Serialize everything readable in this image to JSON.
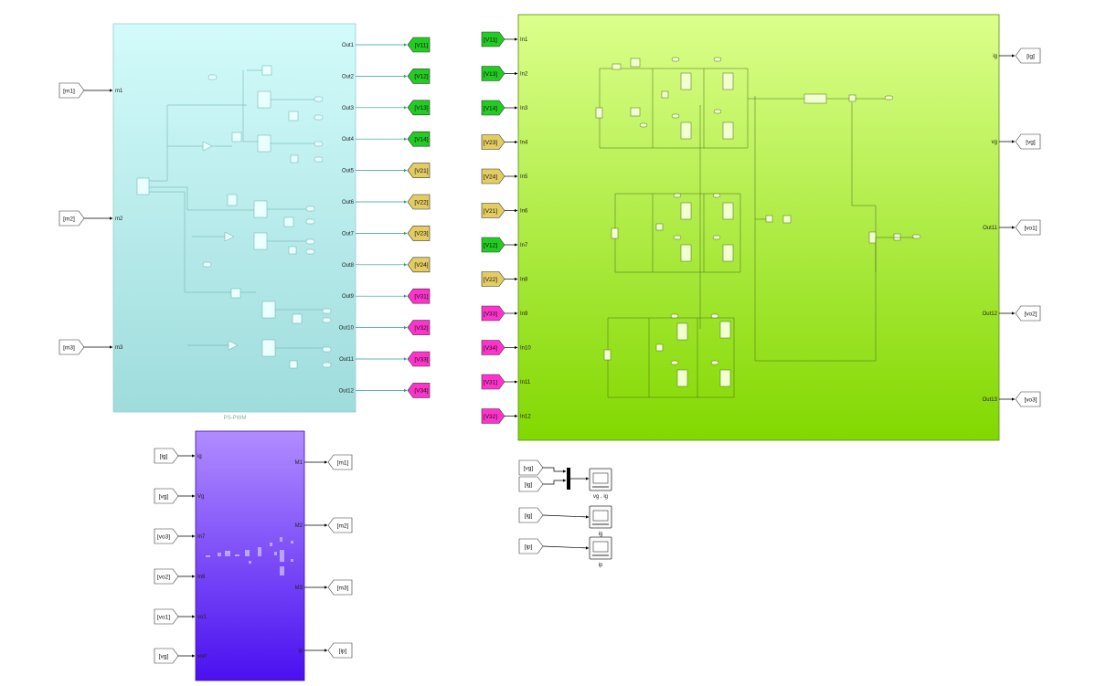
{
  "colors": {
    "pwm_top": "#d3fbfb",
    "pwm_bottom": "#9fdcdc",
    "plant_top": "#dcff8c",
    "plant_bottom": "#82d800",
    "ctrl_top": "#b08cff",
    "ctrl_bottom": "#4a10f0",
    "green_tag": "#22cc22",
    "yellow_tag": "#e3cd63",
    "magenta_tag": "#ff33cc",
    "wire": "#000000",
    "pwm_wire": "#2a9d8f"
  },
  "pwm_block": {
    "caption": "PS-PWM",
    "inputs": [
      "m1",
      "m2",
      "m3"
    ],
    "outputs": [
      "Out1",
      "Out2",
      "Out3",
      "Out4",
      "Out5",
      "Out6",
      "Out7",
      "Out8",
      "Out9",
      "Out10",
      "Out11",
      "Out12"
    ]
  },
  "pwm_inputs": [
    "[m1]",
    "[m2]",
    "[m3]"
  ],
  "pwm_goto": [
    {
      "label": "[V11]",
      "color": "green"
    },
    {
      "label": "[V12]",
      "color": "green"
    },
    {
      "label": "[V13]",
      "color": "green"
    },
    {
      "label": "[V14]",
      "color": "green"
    },
    {
      "label": "[V21]",
      "color": "yellow"
    },
    {
      "label": "[V22]",
      "color": "yellow"
    },
    {
      "label": "[V23]",
      "color": "yellow"
    },
    {
      "label": "[V24]",
      "color": "yellow"
    },
    {
      "label": "[V31]",
      "color": "magenta"
    },
    {
      "label": "[V32]",
      "color": "magenta"
    },
    {
      "label": "[V33]",
      "color": "magenta"
    },
    {
      "label": "[V34]",
      "color": "magenta"
    }
  ],
  "plant_from": [
    {
      "label": "[V11]",
      "color": "green"
    },
    {
      "label": "[V13]",
      "color": "green"
    },
    {
      "label": "[V14]",
      "color": "green"
    },
    {
      "label": "[V23]",
      "color": "yellow"
    },
    {
      "label": "[V24]",
      "color": "yellow"
    },
    {
      "label": "[V21]",
      "color": "yellow"
    },
    {
      "label": "[V12]",
      "color": "green"
    },
    {
      "label": "[V22]",
      "color": "yellow"
    },
    {
      "label": "[V33]",
      "color": "magenta"
    },
    {
      "label": "[V34]",
      "color": "magenta"
    },
    {
      "label": "[V31]",
      "color": "magenta"
    },
    {
      "label": "[V32]",
      "color": "magenta"
    }
  ],
  "plant_block": {
    "inputs": [
      "In1",
      "In2",
      "In3",
      "In4",
      "In5",
      "In6",
      "In7",
      "In8",
      "In9",
      "In10",
      "In11",
      "In12"
    ],
    "outputs": [
      "ig",
      "vg",
      "Out11",
      "Out12",
      "Out13"
    ]
  },
  "plant_goto": [
    "[ig]",
    "[vg]",
    "[vo1]",
    "[vo2]",
    "[vo3]"
  ],
  "ctrl_block": {
    "inputs": [
      "ig",
      "Vg",
      "In7",
      "In8",
      "vo1",
      "vref"
    ],
    "outputs": [
      "M1",
      "M2",
      "M3",
      "ip"
    ]
  },
  "ctrl_from": [
    "[ig]",
    "[vg]",
    "[vo3]",
    "[vo2]",
    "[vo1]",
    "[vg]"
  ],
  "ctrl_goto": [
    "[m1]",
    "[m2]",
    "[m3]",
    "[ip]"
  ],
  "scopes": [
    {
      "inputs": [
        "[vg]",
        "[ig]"
      ],
      "caption": "vg , ig"
    },
    {
      "inputs": [
        "[ig]"
      ],
      "caption": "ig"
    },
    {
      "inputs": [
        "[ip]"
      ],
      "caption": "ip"
    }
  ]
}
